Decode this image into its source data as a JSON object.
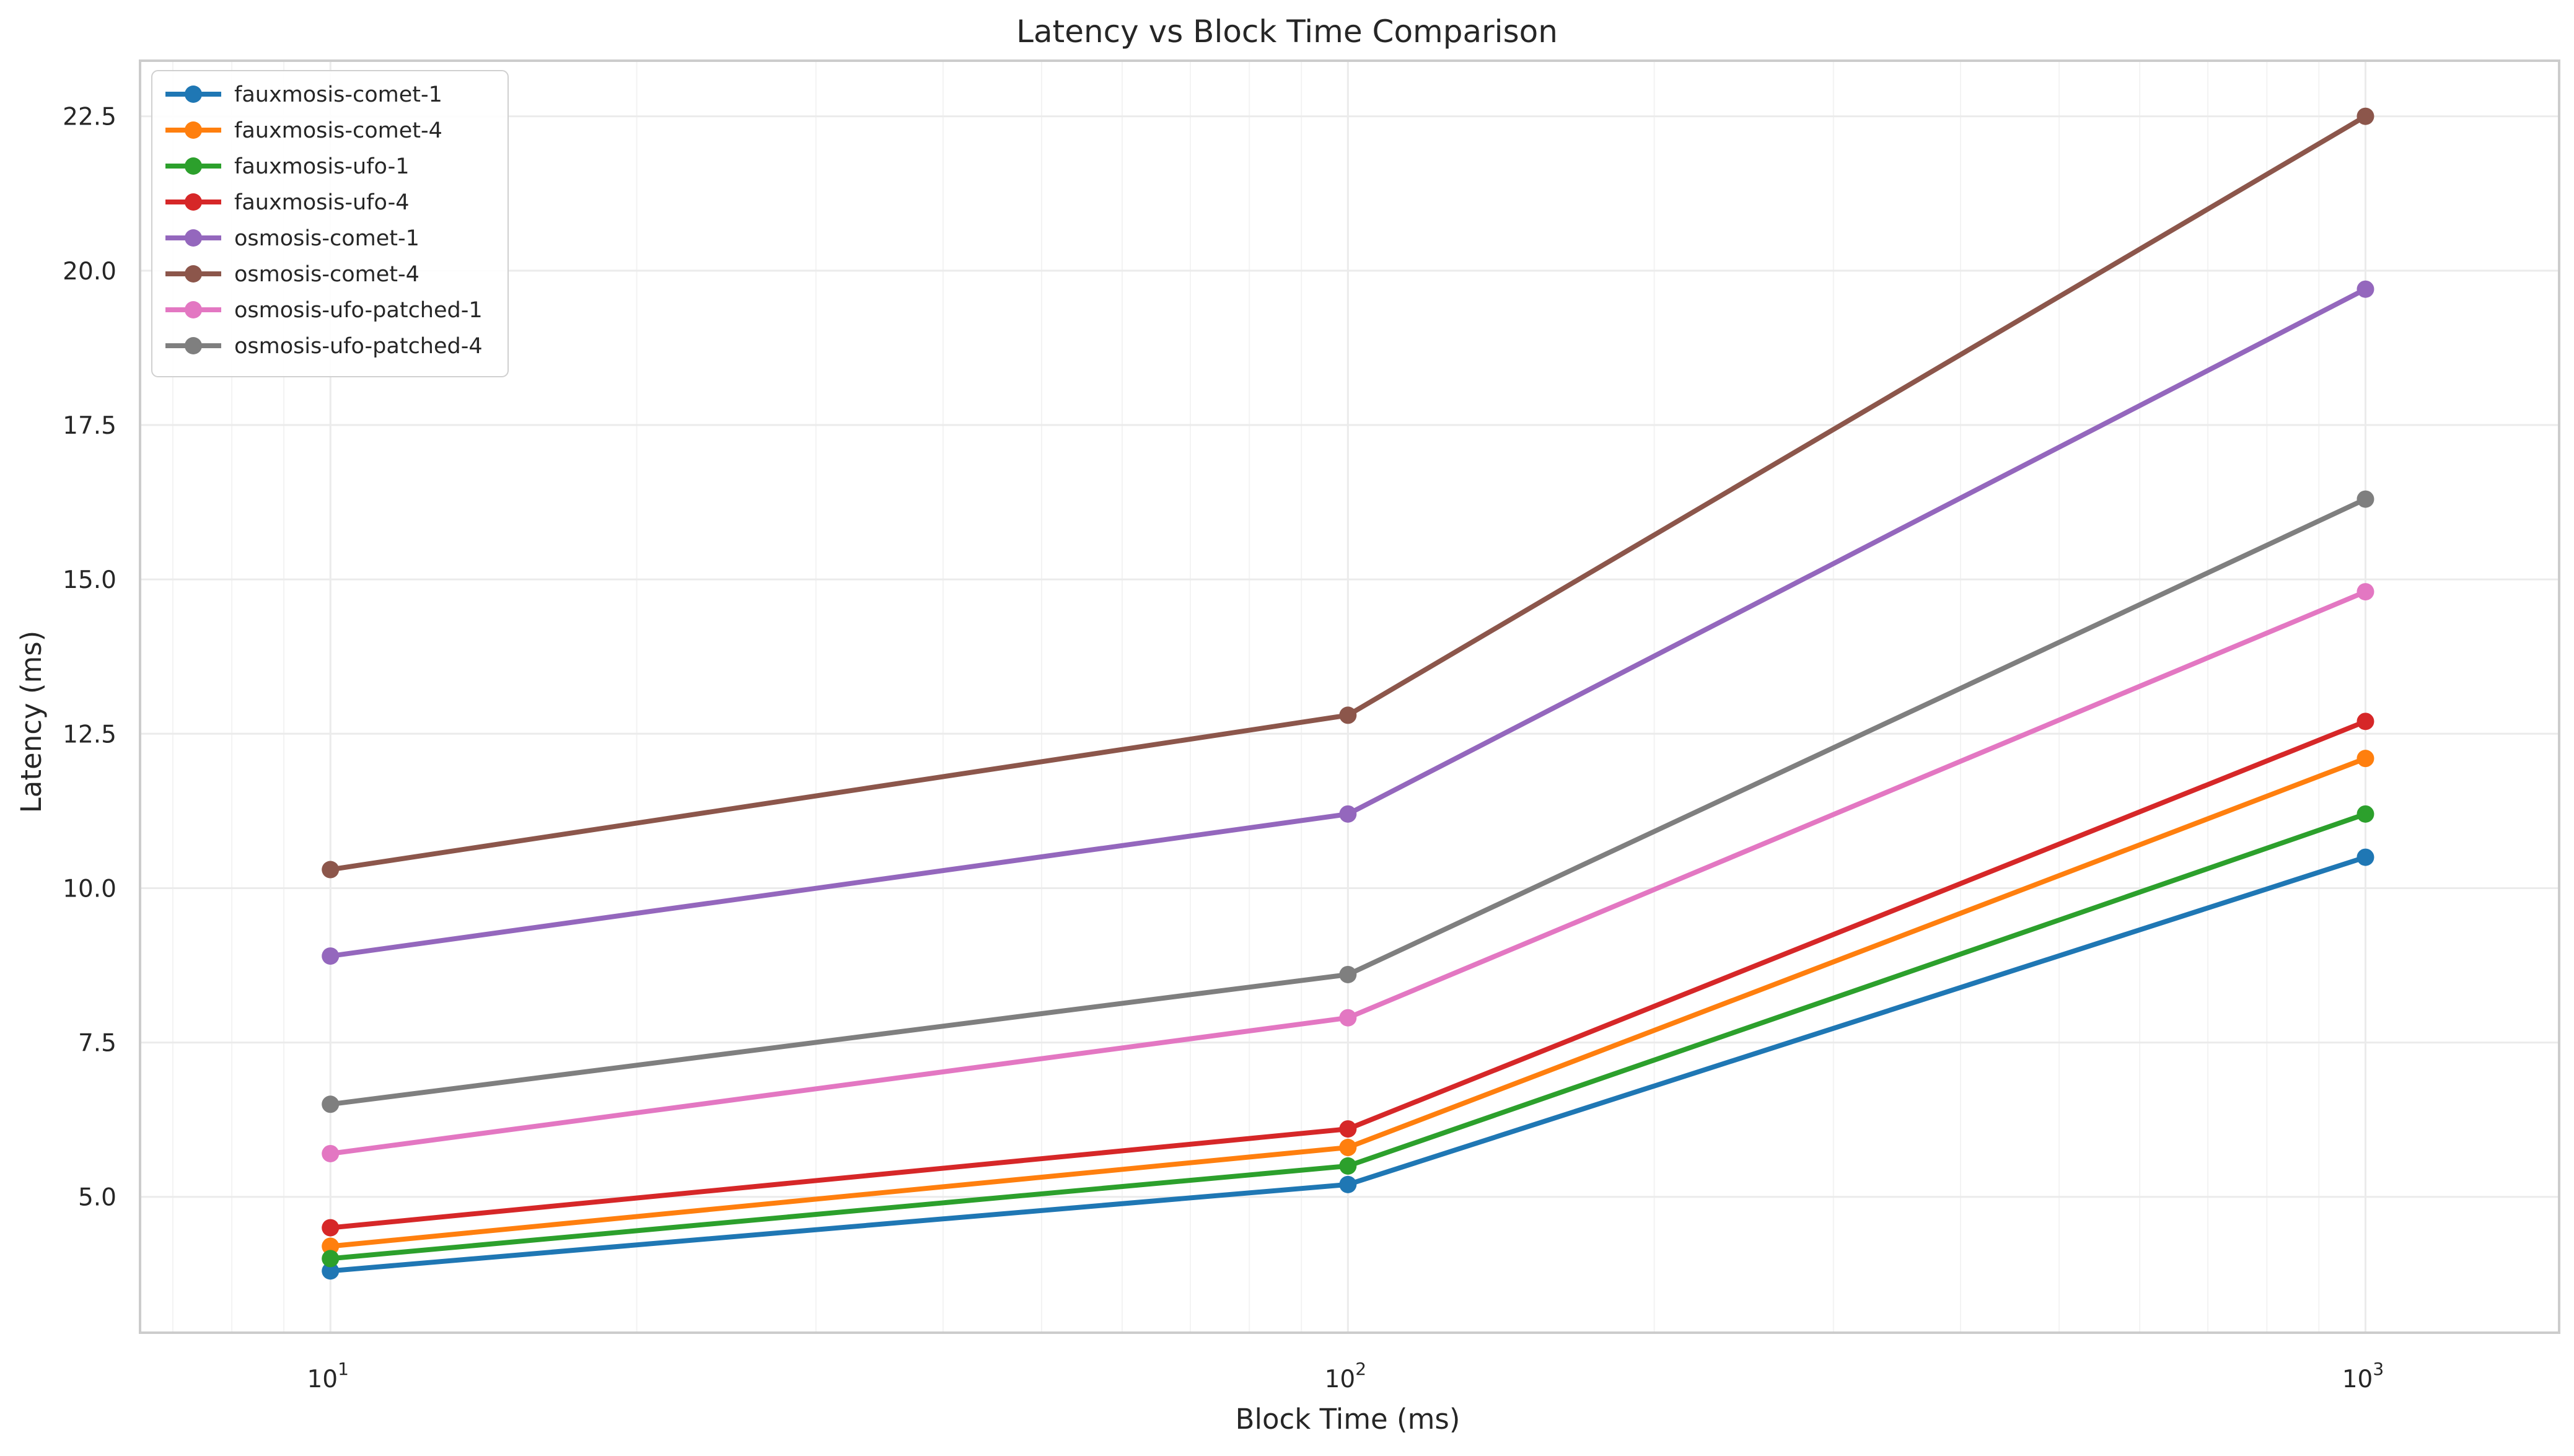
{
  "chart_data": {
    "type": "line",
    "title": "Latency vs Block Time Comparison",
    "xlabel": "Block Time (ms)",
    "ylabel": "Latency (ms)",
    "x_scale": "log",
    "x": [
      10,
      100,
      1000
    ],
    "xlim": [
      6.5,
      1550
    ],
    "ylim": [
      2.8,
      23.4
    ],
    "x_ticks": [
      {
        "value": 10,
        "base": "10",
        "exp": "1"
      },
      {
        "value": 100,
        "base": "10",
        "exp": "2"
      },
      {
        "value": 1000,
        "base": "10",
        "exp": "3"
      }
    ],
    "y_ticks": [
      {
        "value": 5.0,
        "label": "5.0"
      },
      {
        "value": 7.5,
        "label": "7.5"
      },
      {
        "value": 10.0,
        "label": "10.0"
      },
      {
        "value": 12.5,
        "label": "12.5"
      },
      {
        "value": 15.0,
        "label": "15.0"
      },
      {
        "value": 17.5,
        "label": "17.5"
      },
      {
        "value": 20.0,
        "label": "20.0"
      },
      {
        "value": 22.5,
        "label": "22.5"
      }
    ],
    "grid": true,
    "legend_position": "top-left",
    "series": [
      {
        "name": "fauxmosis-comet-1",
        "color": "#1f77b4",
        "values": [
          3.8,
          5.2,
          10.5
        ]
      },
      {
        "name": "fauxmosis-comet-4",
        "color": "#ff7f0e",
        "values": [
          4.2,
          5.8,
          12.1
        ]
      },
      {
        "name": "fauxmosis-ufo-1",
        "color": "#2ca02c",
        "values": [
          4.0,
          5.5,
          11.2
        ]
      },
      {
        "name": "fauxmosis-ufo-4",
        "color": "#d62728",
        "values": [
          4.5,
          6.1,
          12.7
        ]
      },
      {
        "name": "osmosis-comet-1",
        "color": "#9467bd",
        "values": [
          8.9,
          11.2,
          19.7
        ]
      },
      {
        "name": "osmosis-comet-4",
        "color": "#8c564b",
        "values": [
          10.3,
          12.8,
          22.5
        ]
      },
      {
        "name": "osmosis-ufo-patched-1",
        "color": "#e377c2",
        "values": [
          5.7,
          7.9,
          14.8
        ]
      },
      {
        "name": "osmosis-ufo-patched-4",
        "color": "#7f7f7f",
        "values": [
          6.5,
          8.6,
          16.3
        ]
      }
    ]
  }
}
